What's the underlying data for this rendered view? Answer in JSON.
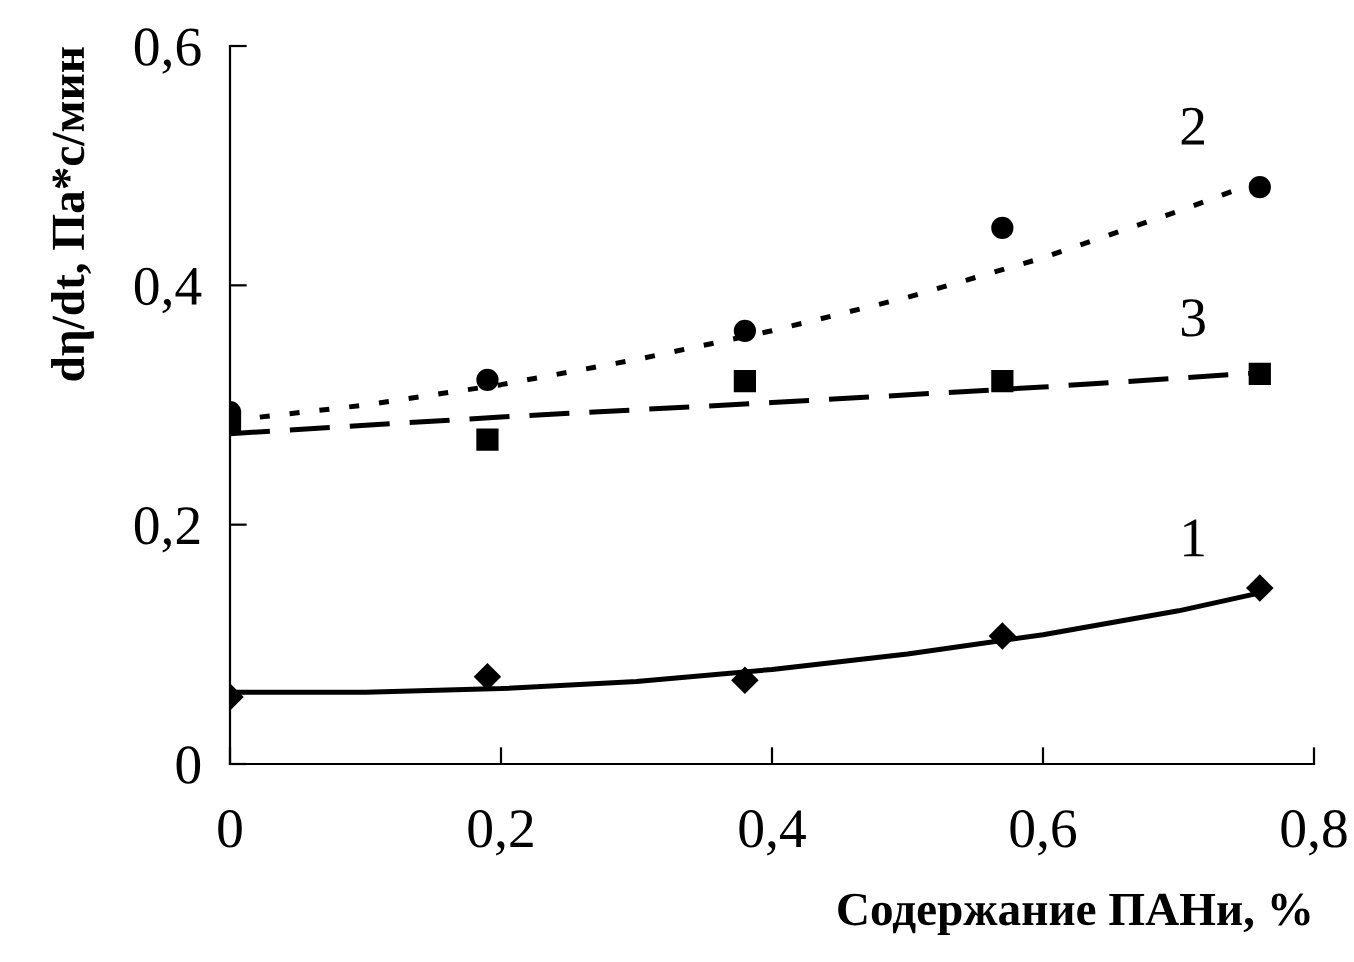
{
  "chart_data": {
    "type": "scatter",
    "xlabel": "Содержание ПАНи, %",
    "ylabel": "dη/dt, Па*с/мин",
    "xlim": [
      0,
      0.8
    ],
    "ylim": [
      0,
      0.6
    ],
    "xticks": [
      0,
      {
        "value": 0.2,
        "label": "0,2"
      },
      {
        "value": 0.4,
        "label": "0,4"
      },
      {
        "value": 0.6,
        "label": "0,6"
      },
      {
        "value": 0.8,
        "label": "0,8"
      }
    ],
    "yticks": [
      0,
      {
        "value": 0.2,
        "label": "0,2"
      },
      {
        "value": 0.4,
        "label": "0,4"
      },
      {
        "value": 0.6,
        "label": "0,6"
      }
    ],
    "grid": false,
    "legend": false,
    "series": [
      {
        "marker": "diamond",
        "color": "#000000",
        "x": [
          0,
          0.19,
          0.38,
          0.57,
          0.76
        ],
        "values": [
          0.056,
          0.073,
          0.07,
          0.107,
          0.147
        ]
      },
      {
        "marker": "circle",
        "color": "#000000",
        "x": [
          0,
          0.19,
          0.38,
          0.57,
          0.76
        ],
        "values": [
          0.294,
          0.321,
          0.362,
          0.448,
          0.482
        ]
      },
      {
        "marker": "square",
        "color": "#000000",
        "x": [
          0,
          0.19,
          0.38,
          0.57,
          0.76
        ],
        "values": [
          0.286,
          0.271,
          0.32,
          0.32,
          0.326
        ]
      },
      {
        "type": "line",
        "name": "1",
        "line_style": "solid",
        "color": "#000000",
        "x": [
          0,
          0.1,
          0.2,
          0.3,
          0.4,
          0.5,
          0.6,
          0.7,
          0.76
        ],
        "values": [
          0.06,
          0.06,
          0.063,
          0.069,
          0.079,
          0.092,
          0.108,
          0.128,
          0.143
        ]
      },
      {
        "type": "line",
        "name": "2",
        "line_style": "dotted",
        "color": "#000000",
        "x": [
          0,
          0.1,
          0.2,
          0.3,
          0.4,
          0.5,
          0.6,
          0.7,
          0.76
        ],
        "values": [
          0.287,
          0.3,
          0.317,
          0.338,
          0.362,
          0.39,
          0.423,
          0.462,
          0.487
        ]
      },
      {
        "type": "line",
        "name": "3",
        "line_style": "dashed",
        "color": "#000000",
        "x": [
          0,
          0.2,
          0.4,
          0.6,
          0.76
        ],
        "values": [
          0.276,
          0.29,
          0.302,
          0.315,
          0.327
        ]
      }
    ]
  }
}
